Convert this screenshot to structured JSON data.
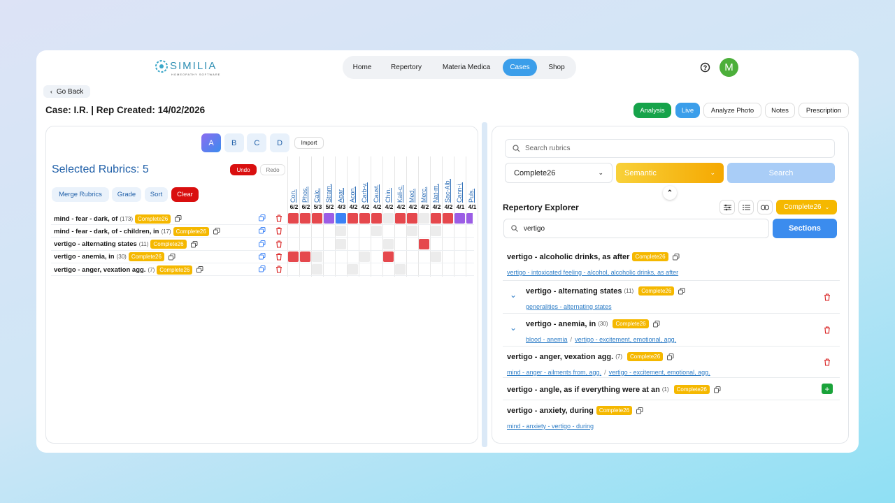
{
  "brand": {
    "name": "SIMILIA",
    "tagline": "HOMEOPATHY SOFTWARE"
  },
  "nav": {
    "items": [
      "Home",
      "Repertory",
      "Materia Medica",
      "Cases",
      "Shop"
    ],
    "active": 3
  },
  "avatar": "M",
  "go_back": "Go Back",
  "case_title": "Case: I.R. | Rep Created: 14/02/2026",
  "actions": [
    {
      "label": "Analysis",
      "color": "#16a34a"
    },
    {
      "label": "Live",
      "color": "#3b9eea"
    },
    {
      "label": "Analyze Photo"
    },
    {
      "label": "Notes"
    },
    {
      "label": "Prescription"
    }
  ],
  "left": {
    "tabs": [
      "A",
      "B",
      "C",
      "D"
    ],
    "active_tab": 0,
    "import": "Import",
    "heading": "Selected Rubrics: 5",
    "undo": "Undo",
    "redo": "Redo",
    "tools": [
      "Merge Rubrics",
      "Grade",
      "Sort",
      "Clear"
    ],
    "remedies": [
      {
        "name": "Con.",
        "score": "6/2"
      },
      {
        "name": "Phos.",
        "score": "6/2"
      },
      {
        "name": "Calc.",
        "score": "5/3"
      },
      {
        "name": "Stram.",
        "score": "5/2"
      },
      {
        "name": "Agar.",
        "score": "4/3"
      },
      {
        "name": "Acon.",
        "score": "4/2"
      },
      {
        "name": "Carb-v.",
        "score": "4/2"
      },
      {
        "name": "Caust.",
        "score": "4/2"
      },
      {
        "name": "Chin.",
        "score": "4/2"
      },
      {
        "name": "Kali-c.",
        "score": "4/2"
      },
      {
        "name": "Med.",
        "score": "4/2"
      },
      {
        "name": "Merc.",
        "score": "4/2"
      },
      {
        "name": "Nat-m.",
        "score": "4/2"
      },
      {
        "name": "Sac-Alb.",
        "score": "4/2"
      },
      {
        "name": "Cann-i.",
        "score": "4/1"
      },
      {
        "name": "Puls.",
        "score": "4/1"
      }
    ],
    "rubrics": [
      {
        "text": "mind - fear - dark, of",
        "count": "(173)",
        "tag": "Complete26",
        "cells": [
          "#e5484d",
          "#e5484d",
          "#e5484d",
          "#9b5de5",
          "#3b82f6",
          "#e5484d",
          "#e5484d",
          "#e5484d",
          "#ececec",
          "#e5484d",
          "#e5484d",
          "#ececec",
          "#e5484d",
          "#e5484d",
          "#9b5de5",
          "#9b5de5"
        ]
      },
      {
        "text": "mind - fear - dark, of - children, in",
        "count": "(17)",
        "tag": "Complete26",
        "cells": [
          "#ffffff",
          "#ffffff",
          "#ffffff",
          "#ffffff",
          "#ececec",
          "#ffffff",
          "#ffffff",
          "#ececec",
          "#ffffff",
          "#ffffff",
          "#ececec",
          "#ffffff",
          "#ececec",
          "#ffffff",
          "#ffffff",
          "#ffffff"
        ]
      },
      {
        "text": "vertigo - alternating states",
        "count": "(11)",
        "tag": "Complete26",
        "cells": [
          "#ffffff",
          "#ffffff",
          "#ffffff",
          "#ffffff",
          "#ececec",
          "#ffffff",
          "#ffffff",
          "#ffffff",
          "#ececec",
          "#ffffff",
          "#ffffff",
          "#e5484d",
          "#ffffff",
          "#ffffff",
          "#ffffff",
          "#ffffff"
        ]
      },
      {
        "text": "vertigo - anemia, in",
        "count": "(30)",
        "tag": "Complete26",
        "cells": [
          "#e5484d",
          "#e5484d",
          "#ececec",
          "#ffffff",
          "#ffffff",
          "#ffffff",
          "#ececec",
          "#ffffff",
          "#e5484d",
          "#ffffff",
          "#ffffff",
          "#ffffff",
          "#ececec",
          "#ffffff",
          "#ffffff",
          "#ffffff"
        ]
      },
      {
        "text": "vertigo - anger, vexation agg.",
        "count": "(7)",
        "tag": "Complete26",
        "cells": [
          "#ffffff",
          "#ffffff",
          "#ececec",
          "#ffffff",
          "#ffffff",
          "#ececec",
          "#ffffff",
          "#ffffff",
          "#ffffff",
          "#ececec",
          "#ffffff",
          "#ffffff",
          "#ffffff",
          "#ffffff",
          "#ffffff",
          "#ffffff"
        ]
      }
    ]
  },
  "right": {
    "search_placeholder": "Search rubrics",
    "book": "Complete26",
    "mode": "Semantic",
    "search": "Search",
    "title": "Repertory Explorer",
    "badge": "Complete26",
    "query": "vertigo",
    "sections": "Sections",
    "link_separator": "/",
    "results": [
      {
        "title": "vertigo - alcoholic drinks, as after",
        "tag": "Complete26",
        "links": [
          "vertigo - intoxicated feeling - alcohol, alcoholic drinks, as after"
        ]
      },
      {
        "title": "vertigo - alternating states",
        "count": "(11)",
        "tag": "Complete26",
        "links": [
          "generalities - alternating states"
        ],
        "expandable": true,
        "action": "delete"
      },
      {
        "title": "vertigo - anemia, in",
        "count": "(30)",
        "tag": "Complete26",
        "links": [
          "blood - anemia",
          "vertigo - excitement, emotional, agg."
        ],
        "expandable": true,
        "action": "delete"
      },
      {
        "title": "vertigo - anger, vexation agg.",
        "count": "(7)",
        "tag": "Complete26",
        "links": [
          "mind - anger - ailments from, agg.",
          "vertigo - excitement, emotional, agg."
        ],
        "action": "delete"
      },
      {
        "title": "vertigo - angle, as if everything were at an",
        "count": "(1)",
        "tag": "Complete26",
        "links": [],
        "action": "add"
      },
      {
        "title": "vertigo - anxiety, during",
        "tag": "Complete26",
        "links": [
          "mind - anxiety - vertigo - during"
        ]
      }
    ]
  }
}
